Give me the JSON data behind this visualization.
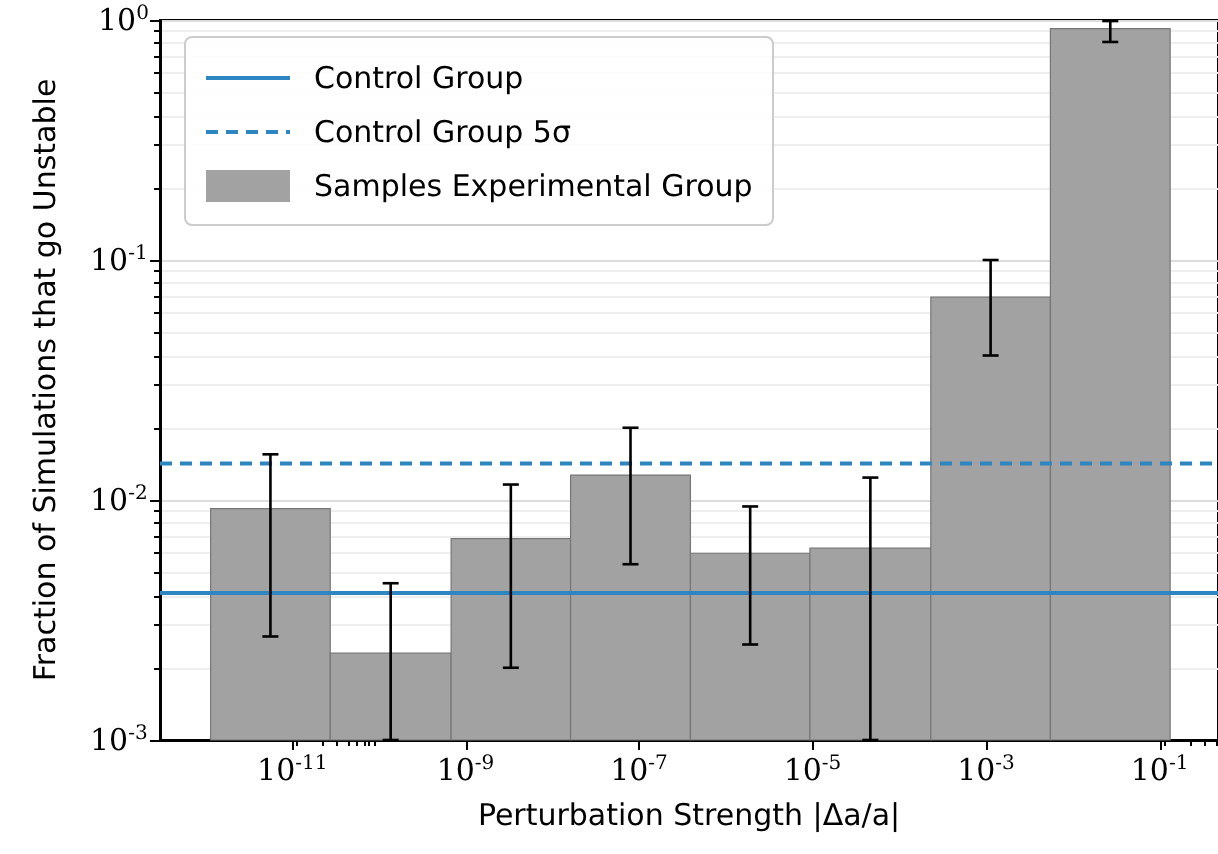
{
  "chart_data": {
    "type": "histogram",
    "xlabel": "Perturbation Strength |Δa/a|",
    "ylabel": "Fraction of Simulations that go Unstable",
    "bins": [
      1.15e-12,
      2.75e-11,
      6.8e-10,
      1.62e-08,
      3.9e-07,
      9.3e-06,
      0.00023,
      0.0055,
      0.132
    ],
    "series": [
      {
        "name": "Samples Experimental Group",
        "color": "#a2a2a2",
        "values": [
          0.0092,
          0.0023,
          0.0069,
          0.0127,
          0.006,
          0.0063,
          0.07,
          0.92
        ],
        "errors": [
          [
            0.0027,
            0.0155
          ],
          [
            0.001,
            0.0045
          ],
          [
            0.002,
            0.0116
          ],
          [
            0.0054,
            0.02
          ],
          [
            0.0025,
            0.0094
          ],
          [
            0.001,
            0.0124
          ],
          [
            0.04,
            0.1
          ],
          [
            0.81,
            0.99
          ]
        ]
      }
    ],
    "ref_lines": [
      {
        "axis": "y",
        "value": 0.0041,
        "label": "Control Group",
        "color": "#2e86c1",
        "line_style": "solid"
      },
      {
        "axis": "y",
        "value": 0.0142,
        "label": "Control Group 5σ",
        "color": "#2e86c1",
        "line_style": "dashed"
      }
    ],
    "log": "xy",
    "xlim": [
      3e-13,
      0.47
    ],
    "ylim": [
      0.001,
      1
    ],
    "xticks": [
      {
        "value": 1e-11,
        "label": "10$^{-11}$"
      },
      {
        "value": 1e-09,
        "label": "10$^{-9}$"
      },
      {
        "value": 1e-07,
        "label": "10$^{-7}$"
      },
      {
        "value": 1e-05,
        "label": "10$^{-5}$"
      },
      {
        "value": 0.001,
        "label": "10$^{-3}$"
      },
      {
        "value": 0.1,
        "label": "10$^{-1}$"
      }
    ],
    "yticks": [
      {
        "value": 0.001,
        "label": "10$^{-3}$"
      },
      {
        "value": 0.01,
        "label": "10$^{-2}$"
      },
      {
        "value": 0.1,
        "label": "10$^{-1}$"
      },
      {
        "value": 1,
        "label": "10$^{0}$"
      }
    ],
    "grid": "y",
    "legend": "top left"
  }
}
